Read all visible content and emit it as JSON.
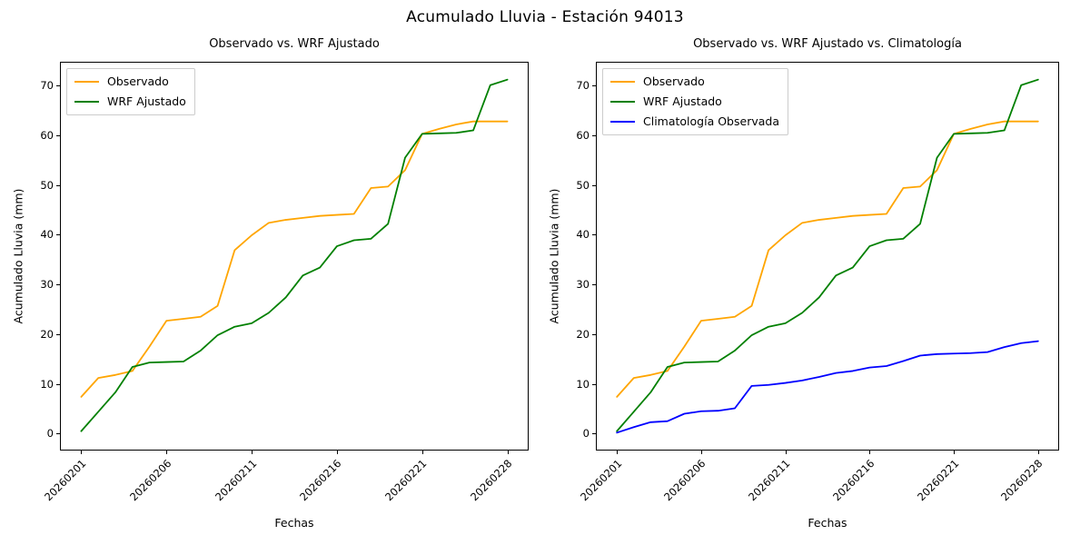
{
  "figure_title": "Acumulado Lluvia - Estación 94013",
  "chart_data": [
    {
      "type": "line",
      "title": "Observado vs. WRF Ajustado",
      "xlabel": "Fechas",
      "ylabel": "Acumulado Lluvia (mm)",
      "x": [
        0,
        1,
        2,
        3,
        4,
        5,
        6,
        7,
        8,
        9,
        10,
        11,
        12,
        13,
        14,
        15,
        16,
        17,
        18,
        19,
        20,
        21,
        22,
        23,
        24,
        25
      ],
      "xtick_positions": [
        0,
        5,
        10,
        15,
        20,
        25
      ],
      "xtick_labels": [
        "20260201",
        "20260206",
        "20260211",
        "20260216",
        "20260221",
        "20260228"
      ],
      "ytick_values": [
        0,
        10,
        20,
        30,
        40,
        50,
        60,
        70
      ],
      "xlim": [
        -1.25,
        26.25
      ],
      "ylim": [
        -3.4,
        74.8
      ],
      "grid": false,
      "legend_position": "upper-left",
      "series": [
        {
          "name": "Observado",
          "color": "#FFA500",
          "values": [
            7.4,
            11.2,
            11.8,
            12.6,
            17.5,
            22.7,
            23.1,
            23.5,
            25.7,
            36.9,
            39.9,
            42.4,
            43.0,
            43.4,
            43.8,
            44.0,
            44.2,
            49.4,
            49.7,
            53.0,
            60.3,
            61.3,
            62.2,
            62.8,
            62.8,
            62.8
          ]
        },
        {
          "name": "WRF Ajustado",
          "color": "#008000",
          "values": [
            0.5,
            4.4,
            8.3,
            13.4,
            14.3,
            14.4,
            14.5,
            16.7,
            19.8,
            21.5,
            22.2,
            24.3,
            27.4,
            31.8,
            33.4,
            37.7,
            38.9,
            39.2,
            42.2,
            55.5,
            60.3,
            60.4,
            60.5,
            61.0,
            70.1,
            71.2
          ]
        }
      ]
    },
    {
      "type": "line",
      "title": "Observado vs. WRF Ajustado vs. Climatología",
      "xlabel": "Fechas",
      "ylabel": "Acumulado Lluvia (mm)",
      "x": [
        0,
        1,
        2,
        3,
        4,
        5,
        6,
        7,
        8,
        9,
        10,
        11,
        12,
        13,
        14,
        15,
        16,
        17,
        18,
        19,
        20,
        21,
        22,
        23,
        24,
        25
      ],
      "xtick_positions": [
        0,
        5,
        10,
        15,
        20,
        25
      ],
      "xtick_labels": [
        "20260201",
        "20260206",
        "20260211",
        "20260216",
        "20260221",
        "20260228"
      ],
      "ytick_values": [
        0,
        10,
        20,
        30,
        40,
        50,
        60,
        70
      ],
      "xlim": [
        -1.25,
        26.25
      ],
      "ylim": [
        -3.4,
        74.8
      ],
      "grid": false,
      "legend_position": "upper-left",
      "series": [
        {
          "name": "Observado",
          "color": "#FFA500",
          "values": [
            7.4,
            11.2,
            11.8,
            12.6,
            17.5,
            22.7,
            23.1,
            23.5,
            25.7,
            36.9,
            39.9,
            42.4,
            43.0,
            43.4,
            43.8,
            44.0,
            44.2,
            49.4,
            49.7,
            53.0,
            60.3,
            61.3,
            62.2,
            62.8,
            62.8,
            62.8
          ]
        },
        {
          "name": "WRF Ajustado",
          "color": "#008000",
          "values": [
            0.5,
            4.4,
            8.3,
            13.4,
            14.3,
            14.4,
            14.5,
            16.7,
            19.8,
            21.5,
            22.2,
            24.3,
            27.4,
            31.8,
            33.4,
            37.7,
            38.9,
            39.2,
            42.2,
            55.5,
            60.3,
            60.4,
            60.5,
            61.0,
            70.1,
            71.2
          ]
        },
        {
          "name": "Climatología Observada",
          "color": "#0000FF",
          "values": [
            0.2,
            1.3,
            2.3,
            2.5,
            4.0,
            4.5,
            4.6,
            5.1,
            9.6,
            9.8,
            10.2,
            10.7,
            11.4,
            12.2,
            12.6,
            13.3,
            13.6,
            14.6,
            15.7,
            16.0,
            16.1,
            16.2,
            16.4,
            17.4,
            18.2,
            18.6
          ]
        }
      ]
    }
  ]
}
